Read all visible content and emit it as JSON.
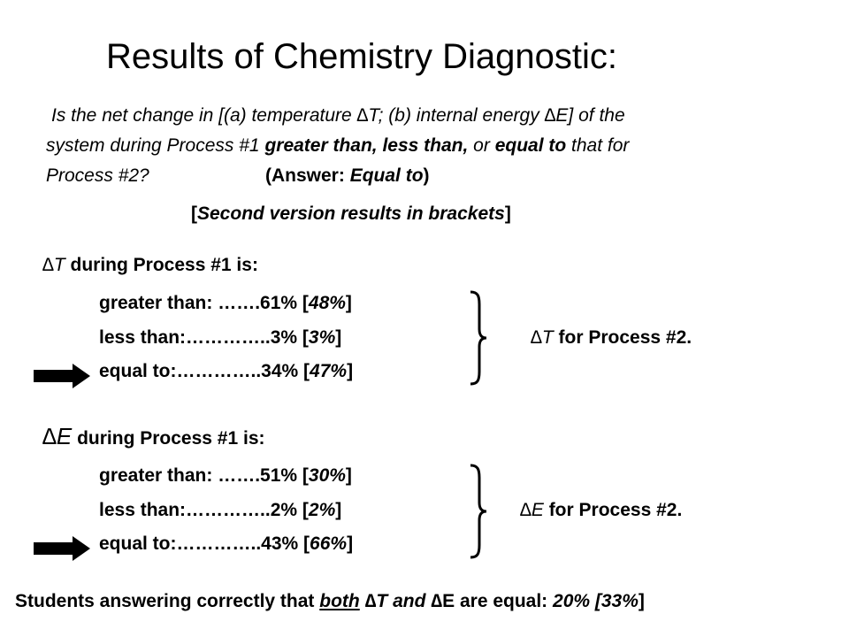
{
  "title": "Results of Chemistry Diagnostic:",
  "question": {
    "line1": "Is the net change in [(a) temperature ∆T; (b) internal energy ∆E] of the",
    "line2_a": "system during Process #1 ",
    "line2_b": "greater than, less than,",
    "line2_c": " or ",
    "line2_d": "equal to",
    "line2_e": " that for",
    "line3_a": "Process #2?",
    "answer_a": "(Answer: ",
    "answer_b": "Equal to",
    "answer_c": ")"
  },
  "note": {
    "open": "[",
    "text": "Second version results in brackets",
    "close": "]"
  },
  "sections": [
    {
      "delta": "∆T",
      "heading": " during Process #1 is:",
      "rows": [
        {
          "label": "greater than: …….61% [",
          "value": "48%",
          "close": "]"
        },
        {
          "label": "less than:…………..3% [",
          "value": "3%",
          "close": "]"
        },
        {
          "label": "equal to:…………..34% [",
          "value": "47%",
          "close": "]"
        }
      ],
      "compare_delta": "∆T",
      "compare_text": "  for Process #2."
    },
    {
      "delta": "∆E",
      "heading": " during Process #1 is:",
      "rows": [
        {
          "label": "greater than: …….51% [",
          "value": "30%",
          "close": "]"
        },
        {
          "label": "less than:…………..2% [",
          "value": "2%",
          "close": "]"
        },
        {
          "label": "equal to:…………..43% [",
          "value": "66%",
          "close": "]"
        }
      ],
      "compare_delta": "∆E",
      "compare_text": "  for Process #2."
    }
  ],
  "footer": {
    "a": "Students answering correctly that ",
    "b": "both",
    "c": " ∆",
    "d": "T and ",
    "e": "∆",
    "f": "E are equal:  ",
    "g": "20% [",
    "h": "33%",
    "i": "]"
  },
  "colors": {
    "text": "#000000",
    "background": "#ffffff"
  },
  "icons": [
    "right-arrow-icon",
    "right-brace-icon"
  ]
}
